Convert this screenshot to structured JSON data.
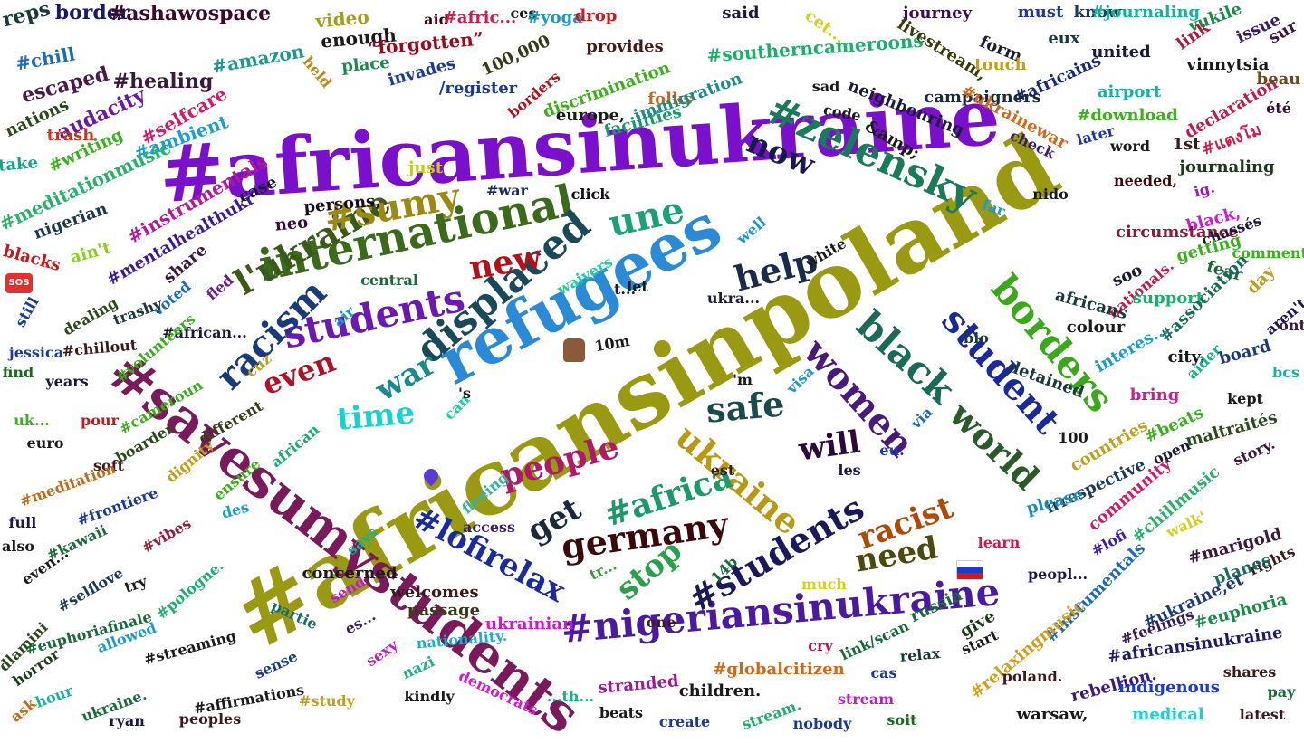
{
  "palette": {
    "background": "#ffffff",
    "purple": "#7a0fcc",
    "olive": "#9a9a12",
    "blue": "#2a8ad6",
    "navy": "#101a7a",
    "teal": "#145a5a",
    "green": "#2e9e1e",
    "maroon": "#8a0e2a"
  },
  "emoji_icons": [
    "thumbs-up-icon",
    "heart-icon",
    "sos-icon",
    "russia-flag-icon"
  ],
  "words": [
    {
      "t": "#africansinpoland",
      "c": "#9a9a12"
    },
    {
      "t": "#africansinukraine",
      "c": "#7a0fcc"
    },
    {
      "t": "refugees",
      "c": "#2a8ad6"
    },
    {
      "t": "#savesumystudents",
      "c": "#7a1a5a"
    },
    {
      "t": "#nigeriansinukraine",
      "c": "#4a1aa0"
    },
    {
      "t": "#zelensky",
      "c": "#1a7a5a"
    },
    {
      "t": "international",
      "c": "#3a6a1a"
    },
    {
      "t": "displaced",
      "c": "#1a4a5a"
    },
    {
      "t": "students",
      "c": "#6a1ab0"
    },
    {
      "t": "student",
      "c": "#1a2a9a"
    },
    {
      "t": "borders",
      "c": "#3aa81a"
    },
    {
      "t": "black",
      "c": "#1a6a5a"
    },
    {
      "t": "world",
      "c": "#2a5a2a"
    },
    {
      "t": "women",
      "c": "#4a1a7a"
    },
    {
      "t": "ukraine",
      "c": "#b89a12"
    },
    {
      "t": "#lofirelax",
      "c": "#1a2aa0"
    },
    {
      "t": "#students",
      "c": "#1a1a5a"
    },
    {
      "t": "germany",
      "c": "#3a0a0a"
    },
    {
      "t": "#africa",
      "c": "#1a9a6a"
    },
    {
      "t": "people",
      "c": "#b0186a"
    },
    {
      "t": "racism",
      "c": "#1a3a7a"
    },
    {
      "t": "l'ukraine",
      "c": "#3a5a1a"
    },
    {
      "t": "#sumy",
      "c": "#9a8a12"
    },
    {
      "t": "une",
      "c": "#1aa07a"
    },
    {
      "t": "new",
      "c": "#b0121a"
    },
    {
      "t": "help",
      "c": "#1a2a4a"
    },
    {
      "t": "now",
      "c": "#1a1a4a"
    },
    {
      "t": "even",
      "c": "#b0122a"
    },
    {
      "t": "war",
      "c": "#1a8a8a"
    },
    {
      "t": "time",
      "c": "#1ad0d0"
    },
    {
      "t": "safe",
      "c": "#1a4a4a"
    },
    {
      "t": "will",
      "c": "#2a0a3a"
    },
    {
      "t": "get",
      "c": "#1a2a3a"
    },
    {
      "t": "stop",
      "c": "#2aa04a"
    },
    {
      "t": "racist",
      "c": "#b04a0a"
    },
    {
      "t": "need",
      "c": "#4a4a0a"
    },
    {
      "t": "#africansinukraine",
      "c": "#1a1a8a"
    },
    {
      "t": "#nigeriansinukraine",
      "c": "#4a1aa0"
    },
    {
      "t": "reps",
      "c": "#1a3a3a"
    },
    {
      "t": "border",
      "c": "#1a1a6a"
    },
    {
      "t": "#ashawospace",
      "c": "#3a0a2a"
    },
    {
      "t": "#chill",
      "c": "#1a6ac0"
    },
    {
      "t": "escaped",
      "c": "#4a1a4a"
    },
    {
      "t": "#healing",
      "c": "#3a1a3a"
    },
    {
      "t": "nations",
      "c": "#2a4a1a"
    },
    {
      "t": "audacity",
      "c": "#6a1a9a"
    },
    {
      "t": "#amazon",
      "c": "#1a9a8a"
    },
    {
      "t": "trash",
      "c": "#c03a1a"
    },
    {
      "t": "#selfcare",
      "c": "#d01a6a"
    },
    {
      "t": "#ambient",
      "c": "#1aa0d0"
    },
    {
      "t": "#writing",
      "c": "#3ab01a"
    },
    {
      "t": "#meditationmusic",
      "c": "#2ab06a"
    },
    {
      "t": "take",
      "c": "#1aa08a"
    },
    {
      "t": "#instrumentals",
      "c": "#b01a9a"
    },
    {
      "t": "#mentalhealthukr",
      "c": "#3a1a9a"
    },
    {
      "t": "nigerian",
      "c": "#1a3a4a"
    },
    {
      "t": "case",
      "c": "#1a1a3a"
    },
    {
      "t": "neo",
      "c": "#3a0a3a"
    },
    {
      "t": "persons,",
      "c": "#1a0a1a"
    },
    {
      "t": "blacks",
      "c": "#c01a1a"
    },
    {
      "t": "ain't",
      "c": "#8ad01a"
    },
    {
      "t": "share",
      "c": "#3a1a3a"
    },
    {
      "t": "#war",
      "c": "#1a2a5a"
    },
    {
      "t": "click",
      "c": "#1a0a1a"
    },
    {
      "t": "just",
      "c": "#c0d01a"
    },
    {
      "t": "video",
      "c": "#a0a01a"
    },
    {
      "t": "enough",
      "c": "#1a1a1a"
    },
    {
      "t": "aid",
      "c": "#3a0a0a"
    },
    {
      "t": "#afric...",
      "c": "#d01a4a"
    },
    {
      "t": "ces",
      "c": "#1a1a1a"
    },
    {
      "t": "#yoga",
      "c": "#1a9ac0"
    },
    {
      "t": "drop",
      "c": "#d01a1a"
    },
    {
      "t": "said",
      "c": "#1a1a3a"
    },
    {
      "t": "cet...",
      "c": "#d0d01a"
    },
    {
      "t": "journey",
      "c": "#3a0a6a"
    },
    {
      "t": "must",
      "c": "#1a3a9a"
    },
    {
      "t": "know",
      "c": "#1a3a5a"
    },
    {
      "t": "#journaling",
      "c": "#1ab0a0"
    },
    {
      "t": "vukile",
      "c": "#1a8a4a"
    },
    {
      "t": "issue",
      "c": "#3a1a6a"
    },
    {
      "t": "“forgotten”",
      "c": "#9a0a1a"
    },
    {
      "t": "100,000",
      "c": "#3a3a1a"
    },
    {
      "t": "provides",
      "c": "#4a1a1a"
    },
    {
      "t": "#southerncameroons",
      "c": "#1ab06a"
    },
    {
      "t": "livestream,",
      "c": "#3a3a0a"
    },
    {
      "t": "form",
      "c": "#1a1a3a"
    },
    {
      "t": "eux",
      "c": "#1a3a3a"
    },
    {
      "t": "united",
      "c": "#1a1a3a"
    },
    {
      "t": "link",
      "c": "#b01a3a"
    },
    {
      "t": "vinnytsia",
      "c": "#1a1a1a"
    },
    {
      "t": "sur",
      "c": "#3a1a3a"
    },
    {
      "t": "place",
      "c": "#1a8a4a"
    },
    {
      "t": "invades",
      "c": "#1a3a9a"
    },
    {
      "t": "held",
      "c": "#c08a1a"
    },
    {
      "t": "/register",
      "c": "#1a3a8a"
    },
    {
      "t": "borders",
      "c": "#b0121a"
    },
    {
      "t": "discrimination",
      "c": "#3ab01a"
    },
    {
      "t": "europe,",
      "c": "#1a1a1a"
    },
    {
      "t": "folks",
      "c": "#c06a1a"
    },
    {
      "t": "facilities",
      "c": "#1a9a6a"
    },
    {
      "t": "immigration",
      "c": "#1a8a8a"
    },
    {
      "t": "touch",
      "c": "#c0a01a"
    },
    {
      "t": "#africains",
      "c": "#1a2a7a"
    },
    {
      "t": "airport",
      "c": "#1ab0a0"
    },
    {
      "t": "declaration",
      "c": "#c01a4a"
    },
    {
      "t": "beau",
      "c": "#6a4a1a"
    },
    {
      "t": "sad",
      "c": "#1a1a1a"
    },
    {
      "t": "neighbouring",
      "c": "#1a1a3a"
    },
    {
      "t": "campaigners",
      "c": "#1a2a3a"
    },
    {
      "t": "#download",
      "c": "#3ab01a"
    },
    {
      "t": "été",
      "c": "#3a0a3a"
    },
    {
      "t": "code",
      "c": "#1a1a1a"
    },
    {
      "t": "&amp;",
      "c": "#1a1a1a"
    },
    {
      "t": "#ukrainewar",
      "c": "#d06a1a"
    },
    {
      "t": "check",
      "c": "#3a1a6a"
    },
    {
      "t": "later",
      "c": "#1a3a9a"
    },
    {
      "t": "word",
      "c": "#1a1a1a"
    },
    {
      "t": "1st",
      "c": "#3a1a1a"
    },
    {
      "t": "journaling",
      "c": "#1a3a1a"
    },
    {
      "t": "#แตงโม",
      "c": "#d01a4a"
    },
    {
      "t": "needed,",
      "c": "#3a0a0a"
    },
    {
      "t": "ig.",
      "c": "#9a1ab0"
    },
    {
      "t": "nido",
      "c": "#1a1a1a"
    },
    {
      "t": "far",
      "c": "#1a9ad0"
    },
    {
      "t": "black,",
      "c": "#d01ad0"
    },
    {
      "t": "circumstance",
      "c": "#8a1a3a"
    },
    {
      "t": "chassés",
      "c": "#1a1a3a"
    },
    {
      "t": "getting",
      "c": "#3ab01a"
    },
    {
      "t": "comment,",
      "c": "#3ab01a"
    },
    {
      "t": "soo",
      "c": "#1a1a3a"
    },
    {
      "t": "nationals.",
      "c": "#c01a4a"
    },
    {
      "t": "fear",
      "c": "#1a6a3a"
    },
    {
      "t": "day",
      "c": "#c09a1a"
    },
    {
      "t": "aren't",
      "c": "#1a1a4a"
    },
    {
      "t": "africans",
      "c": "#1a3a3a"
    },
    {
      "t": "support",
      "c": "#1ab06a"
    },
    {
      "t": "#association",
      "c": "#1a6a5a"
    },
    {
      "t": "ont",
      "c": "#3a1a3a"
    },
    {
      "t": "colour",
      "c": "#1a1a1a"
    },
    {
      "t": "interes...",
      "c": "#1a9ad0"
    },
    {
      "t": "city,",
      "c": "#1a1a1a"
    },
    {
      "t": "aider",
      "c": "#1ab08a"
    },
    {
      "t": "board",
      "c": "#1a3a7a"
    },
    {
      "t": "bcs",
      "c": "#1ab0a0"
    },
    {
      "t": "bring",
      "c": "#d01a9a"
    },
    {
      "t": "kept",
      "c": "#1a1a1a"
    },
    {
      "t": "#beats",
      "c": "#3ab01a"
    },
    {
      "t": "maltraités",
      "c": "#2a4a1a"
    },
    {
      "t": "story.",
      "c": "#3a1a3a"
    },
    {
      "t": "bio",
      "c": "#1a3a3a"
    },
    {
      "t": "detained",
      "c": "#1a3a3a"
    },
    {
      "t": "100",
      "c": "#1a1a1a"
    },
    {
      "t": "countries",
      "c": "#c0a01a"
    },
    {
      "t": "open",
      "c": "#1a1a3a"
    },
    {
      "t": "irrespective",
      "c": "#1a3a5a"
    },
    {
      "t": "please",
      "c": "#1a8ac0"
    },
    {
      "t": "community",
      "c": "#d01a6a"
    },
    {
      "t": "#chillmusic",
      "c": "#2ab06a"
    },
    {
      "t": "walk'",
      "c": "#d0d01a"
    },
    {
      "t": "learn",
      "c": "#d01a4a"
    },
    {
      "t": "#lofi",
      "c": "#3a1ab0"
    },
    {
      "t": "#marigold",
      "c": "#3a1a3a"
    },
    {
      "t": "rights",
      "c": "#3a1a1a"
    },
    {
      "t": "planes",
      "c": "#1a6a5a"
    },
    {
      "t": "peopl...",
      "c": "#1a1a3a"
    },
    {
      "t": "#instumentals",
      "c": "#1a6ac0"
    },
    {
      "t": "#ukraine,et",
      "c": "#1a3a7a"
    },
    {
      "t": "#feelings",
      "c": "#3a1a5a"
    },
    {
      "t": "#euphoria",
      "c": "#1a8a4a"
    },
    {
      "t": "#relaxingmusic",
      "c": "#d0a01a"
    },
    {
      "t": "poland.",
      "c": "#3a1a1a"
    },
    {
      "t": "#africansinukraine",
      "c": "#1a1a6a"
    },
    {
      "t": "shares",
      "c": "#3a1a1a"
    },
    {
      "t": "rebellion.",
      "c": "#3a1a7a"
    },
    {
      "t": "indigenous",
      "c": "#1a3ad0"
    },
    {
      "t": "pay",
      "c": "#1a6a3a"
    },
    {
      "t": "warsaw,",
      "c": "#1a1a1a"
    },
    {
      "t": "medical",
      "c": "#1ad0d0"
    },
    {
      "t": "latest",
      "c": "#3a1a1a"
    },
    {
      "t": "give",
      "c": "#1a3a1a"
    },
    {
      "t": "russia",
      "c": "#1a6a3a"
    },
    {
      "t": "start",
      "c": "#1a1a1a"
    },
    {
      "t": "relax",
      "c": "#1a3a3a"
    },
    {
      "t": "cas",
      "c": "#1a3a9a"
    },
    {
      "t": "link/scan",
      "c": "#1a6a3a"
    },
    {
      "t": "#globalcitizen",
      "c": "#d06a1a"
    },
    {
      "t": "stream",
      "c": "#c01ad0"
    },
    {
      "t": "soit",
      "c": "#1a6a1a"
    },
    {
      "t": "nobody",
      "c": "#1a3a9a"
    },
    {
      "t": "stream.",
      "c": "#1ab06a"
    },
    {
      "t": "create",
      "c": "#1a3a9a"
    },
    {
      "t": "children.",
      "c": "#1a1a1a"
    },
    {
      "t": "beats",
      "c": "#1a1a1a"
    },
    {
      "t": "stranded",
      "c": "#9a1a9a"
    },
    {
      "t": "cry",
      "c": "#b01a4a"
    },
    {
      "t": "es...",
      "c": "#3a1a6a"
    },
    {
      "t": "sexy",
      "c": "#c01ad0"
    },
    {
      "t": "nazi",
      "c": "#1ab08a"
    },
    {
      "t": "democrats",
      "c": "#d01ad0"
    },
    {
      "t": "...th...",
      "c": "#1ab08a"
    },
    {
      "t": "kindly",
      "c": "#1a1a1a"
    },
    {
      "t": "nationality.",
      "c": "#1ab0d0"
    },
    {
      "t": "ukrainian",
      "c": "#d01ad0"
    },
    {
      "t": "passage",
      "c": "#3a3a1a"
    },
    {
      "t": "welcomes",
      "c": "#3a1a1a"
    },
    {
      "t": "concerned",
      "c": "#1a1a1a"
    },
    {
      "t": "send",
      "c": "#c01ad0"
    },
    {
      "t": "partie",
      "c": "#1a6a6a"
    },
    {
      "t": "one",
      "c": "#3a1a1a"
    },
    {
      "t": "much",
      "c": "#d0d01a"
    },
    {
      "t": "14b",
      "c": "#1a6a3a"
    },
    {
      "t": "tr...",
      "c": "#3a9a3a"
    },
    {
      "t": "says",
      "c": "#1ab08a"
    },
    {
      "t": "des",
      "c": "#1a9ad0"
    },
    {
      "t": "access",
      "c": "#3a1a6a"
    },
    {
      "t": "fleeing",
      "c": "#3ab0a0"
    },
    {
      "t": "est",
      "c": "#3a1a1a"
    },
    {
      "t": "les",
      "c": "#1a1a3a"
    },
    {
      "t": "eu.",
      "c": "#1a3ad0"
    },
    {
      "t": "via",
      "c": "#1a6ac0"
    },
    {
      "t": "visa",
      "c": "#1a9ad0"
    },
    {
      "t": "can",
      "c": "#1ad0a0"
    },
    {
      "t": "'s",
      "c": "#1a1a1a"
    },
    {
      "t": "'m",
      "c": "#1a1a1a"
    },
    {
      "t": "10m",
      "c": "#1a1a1a"
    },
    {
      "t": "ukra...",
      "c": "#1a1a3a"
    },
    {
      "t": "t...",
      "c": "#1a1a3a"
    },
    {
      "t": "let",
      "c": "#1a1a1a"
    },
    {
      "t": "waivers",
      "c": "#1ad0a0"
    },
    {
      "t": "well",
      "c": "#1a9ad0"
    },
    {
      "t": "white",
      "c": "#1a1a1a"
    },
    {
      "t": "central",
      "c": "#1a6a3a"
    },
    {
      "t": "air",
      "c": "#1a9ad0"
    },
    {
      "t": "fled",
      "c": "#6a1a9a"
    },
    {
      "t": "#african...",
      "c": "#1a1a3a"
    },
    {
      "t": "voted",
      "c": "#1a6ac0"
    },
    {
      "t": "trashy",
      "c": "#1a3a3a"
    },
    {
      "t": "dealing",
      "c": "#2a4a1a"
    },
    {
      "t": "still",
      "c": "#1a3a9a"
    },
    {
      "t": "#chillout",
      "c": "#3a1a1a"
    },
    {
      "t": "#volunteers",
      "c": "#3ab01a"
    },
    {
      "t": "jessica",
      "c": "#1a3a9a"
    },
    {
      "t": "find",
      "c": "#1a6a1a"
    },
    {
      "t": "years",
      "c": "#1a1a3a"
    },
    {
      "t": "cuz",
      "c": "#c0a01a"
    },
    {
      "t": "#cameroun",
      "c": "#3ab01a"
    },
    {
      "t": "uk...",
      "c": "#3ab01a"
    },
    {
      "t": "pour",
      "c": "#c01a1a"
    },
    {
      "t": "boarder",
      "c": "#2a4a1a"
    },
    {
      "t": "different",
      "c": "#3a3a1a"
    },
    {
      "t": "african",
      "c": "#1ab06a"
    },
    {
      "t": "euro",
      "c": "#1a1a1a"
    },
    {
      "t": "soft",
      "c": "#3a1a1a"
    },
    {
      "t": "dignity",
      "c": "#c0a01a"
    },
    {
      "t": "ensure",
      "c": "#3ab01a"
    },
    {
      "t": "#meditation",
      "c": "#c06a1a"
    },
    {
      "t": "#frontiere",
      "c": "#1a3a9a"
    },
    {
      "t": "full",
      "c": "#1a1a3a"
    },
    {
      "t": "#kawaii",
      "c": "#1a6a3a"
    },
    {
      "t": "#vibes",
      "c": "#9a1a3a"
    },
    {
      "t": "also",
      "c": "#1a1a1a"
    },
    {
      "t": "even...",
      "c": "#1a1a1a"
    },
    {
      "t": "#selflove",
      "c": "#1a3a5a"
    },
    {
      "t": "try",
      "c": "#1a1a1a"
    },
    {
      "t": "#pologne.",
      "c": "#1ab06a"
    },
    {
      "t": "#euphoriafinale",
      "c": "#1a6a3a"
    },
    {
      "t": "allowed",
      "c": "#1a9ad0"
    },
    {
      "t": "#streaming",
      "c": "#1a1a1a"
    },
    {
      "t": "dlamini",
      "c": "#2a4a1a"
    },
    {
      "t": "horror",
      "c": "#1a3a1a"
    },
    {
      "t": "hour",
      "c": "#1ab0a0"
    },
    {
      "t": "ask",
      "c": "#c06a1a"
    },
    {
      "t": "ukraine.",
      "c": "#1a6a3a"
    },
    {
      "t": "ryan",
      "c": "#1a1a3a"
    },
    {
      "t": "peoples",
      "c": "#3a1a1a"
    },
    {
      "t": "#affirmations",
      "c": "#1a1a1a"
    },
    {
      "t": "sense",
      "c": "#1a3a9a"
    },
    {
      "t": "#study",
      "c": "#c0a01a"
    }
  ]
}
